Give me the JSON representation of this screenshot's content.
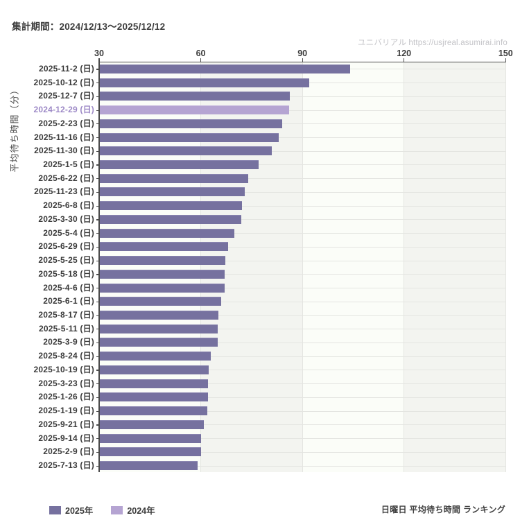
{
  "header": {
    "title": "集計期間：2024/12/13〜2025/12/12",
    "watermark": "ユニバリアル  https://usjreal.asumirai.info"
  },
  "chart_data": {
    "type": "bar",
    "orientation": "horizontal",
    "title": "日曜日 平均待ち時間 ランキング",
    "ylabel": "平均待ち時間（分）",
    "xlim": [
      30,
      150
    ],
    "xticks": [
      30,
      60,
      90,
      120,
      150
    ],
    "grid": true,
    "legend_position": "bottom-left",
    "legend": [
      {
        "label": "2025年",
        "year": 2025,
        "color": "#76719f"
      },
      {
        "label": "2024年",
        "year": 2024,
        "color": "#b5a4d2"
      }
    ],
    "bars": [
      {
        "label": "2025-11-2 (日)",
        "value": 104,
        "year": 2025
      },
      {
        "label": "2025-10-12 (日)",
        "value": 92,
        "year": 2025
      },
      {
        "label": "2025-12-7 (日)",
        "value": 86.3,
        "year": 2025
      },
      {
        "label": "2024-12-29 (日)",
        "value": 86,
        "year": 2024
      },
      {
        "label": "2025-2-23 (日)",
        "value": 84,
        "year": 2025
      },
      {
        "label": "2025-11-16 (日)",
        "value": 83,
        "year": 2025
      },
      {
        "label": "2025-11-30 (日)",
        "value": 81,
        "year": 2025
      },
      {
        "label": "2025-1-5 (日)",
        "value": 77,
        "year": 2025
      },
      {
        "label": "2025-6-22 (日)",
        "value": 74,
        "year": 2025
      },
      {
        "label": "2025-11-23 (日)",
        "value": 73,
        "year": 2025
      },
      {
        "label": "2025-6-8 (日)",
        "value": 72.1,
        "year": 2025
      },
      {
        "label": "2025-3-30 (日)",
        "value": 72,
        "year": 2025
      },
      {
        "label": "2025-5-4 (日)",
        "value": 70,
        "year": 2025
      },
      {
        "label": "2025-6-29 (日)",
        "value": 68,
        "year": 2025
      },
      {
        "label": "2025-5-25 (日)",
        "value": 67.2,
        "year": 2025
      },
      {
        "label": "2025-5-18 (日)",
        "value": 67.1,
        "year": 2025
      },
      {
        "label": "2025-4-6 (日)",
        "value": 67,
        "year": 2025
      },
      {
        "label": "2025-6-1 (日)",
        "value": 66,
        "year": 2025
      },
      {
        "label": "2025-8-17 (日)",
        "value": 65.2,
        "year": 2025
      },
      {
        "label": "2025-5-11 (日)",
        "value": 65.1,
        "year": 2025
      },
      {
        "label": "2025-3-9 (日)",
        "value": 65,
        "year": 2025
      },
      {
        "label": "2025-8-24 (日)",
        "value": 63,
        "year": 2025
      },
      {
        "label": "2025-10-19 (日)",
        "value": 62.3,
        "year": 2025
      },
      {
        "label": "2025-3-23 (日)",
        "value": 62.2,
        "year": 2025
      },
      {
        "label": "2025-1-26 (日)",
        "value": 62.1,
        "year": 2025
      },
      {
        "label": "2025-1-19 (日)",
        "value": 62,
        "year": 2025
      },
      {
        "label": "2025-9-21 (日)",
        "value": 61,
        "year": 2025
      },
      {
        "label": "2025-9-14 (日)",
        "value": 60.1,
        "year": 2025
      },
      {
        "label": "2025-2-9 (日)",
        "value": 60,
        "year": 2025
      },
      {
        "label": "2025-7-13 (日)",
        "value": 59,
        "year": 2025
      }
    ]
  },
  "colors": {
    "bar_2025": "#76719f",
    "bar_2025_top": "#8a85b0",
    "bar_2024": "#b5a4d2",
    "bar_2024_top": "#c9badf",
    "highlight_label": "#9c88c6",
    "label_text": "#3a3a3a",
    "band_light": "#fbfdf8",
    "band_gray": "#f3f4f0",
    "grid_line": "#e4e5e1",
    "axis_line": "#4a4a4a"
  }
}
